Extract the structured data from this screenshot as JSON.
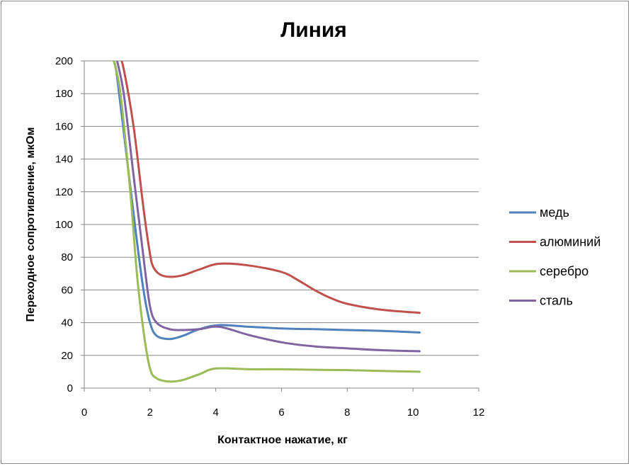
{
  "chart_data": {
    "type": "line",
    "title": "Линия",
    "xlabel": "Контактное нажатие, кг",
    "ylabel": "Переходное сопротивление, мкОм",
    "xlim": [
      0,
      12
    ],
    "ylim": [
      0,
      200
    ],
    "x_ticks": [
      "0",
      "2",
      "4",
      "6",
      "8",
      "10",
      "12"
    ],
    "y_ticks": [
      "0",
      "20",
      "40",
      "60",
      "80",
      "100",
      "120",
      "140",
      "160",
      "180",
      "200"
    ],
    "grid": "horizontal",
    "legend_position": "right",
    "series": [
      {
        "name": "медь",
        "color": "#4f81bd",
        "points": [
          [
            0.9,
            200
          ],
          [
            1.0,
            190
          ],
          [
            1.3,
            140
          ],
          [
            1.6,
            90
          ],
          [
            1.8,
            60
          ],
          [
            2.0,
            40
          ],
          [
            2.2,
            32
          ],
          [
            2.6,
            30
          ],
          [
            3.0,
            32
          ],
          [
            3.5,
            36
          ],
          [
            4.1,
            38.5
          ],
          [
            5.0,
            37.5
          ],
          [
            6.0,
            36.5
          ],
          [
            7.0,
            36
          ],
          [
            8.0,
            35.5
          ],
          [
            9.0,
            35
          ],
          [
            10.2,
            34
          ]
        ]
      },
      {
        "name": "алюминий",
        "color": "#c0504d",
        "points": [
          [
            1.05,
            205
          ],
          [
            1.2,
            195
          ],
          [
            1.5,
            160
          ],
          [
            1.8,
            110
          ],
          [
            2.0,
            82
          ],
          [
            2.1,
            74
          ],
          [
            2.3,
            69.5
          ],
          [
            2.6,
            68
          ],
          [
            3.0,
            69
          ],
          [
            3.5,
            72.5
          ],
          [
            4.1,
            76
          ],
          [
            5.0,
            75
          ],
          [
            6.0,
            71
          ],
          [
            6.5,
            66
          ],
          [
            7.0,
            60
          ],
          [
            7.5,
            55
          ],
          [
            8.0,
            51.5
          ],
          [
            9.0,
            48
          ],
          [
            10.2,
            46
          ]
        ]
      },
      {
        "name": "серебро",
        "color": "#9bbb59",
        "points": [
          [
            0.9,
            200
          ],
          [
            1.1,
            180
          ],
          [
            1.4,
            120
          ],
          [
            1.6,
            70
          ],
          [
            1.8,
            35
          ],
          [
            2.0,
            12
          ],
          [
            2.2,
            6
          ],
          [
            2.6,
            4
          ],
          [
            3.0,
            5
          ],
          [
            3.5,
            8.5
          ],
          [
            4.0,
            12
          ],
          [
            5.0,
            11.5
          ],
          [
            6.0,
            11.5
          ],
          [
            7.0,
            11.2
          ],
          [
            8.0,
            11
          ],
          [
            9.0,
            10.5
          ],
          [
            10.2,
            10
          ]
        ]
      },
      {
        "name": "сталь",
        "color": "#8064a2",
        "points": [
          [
            1.0,
            200
          ],
          [
            1.2,
            180
          ],
          [
            1.5,
            130
          ],
          [
            1.8,
            80
          ],
          [
            2.0,
            50
          ],
          [
            2.2,
            40
          ],
          [
            2.6,
            36
          ],
          [
            3.0,
            35.5
          ],
          [
            3.5,
            36
          ],
          [
            4.1,
            37.5
          ],
          [
            5.0,
            32.5
          ],
          [
            6.0,
            28
          ],
          [
            7.0,
            25.5
          ],
          [
            8.0,
            24.3
          ],
          [
            9.0,
            23.2
          ],
          [
            10.2,
            22.5
          ]
        ]
      }
    ]
  }
}
